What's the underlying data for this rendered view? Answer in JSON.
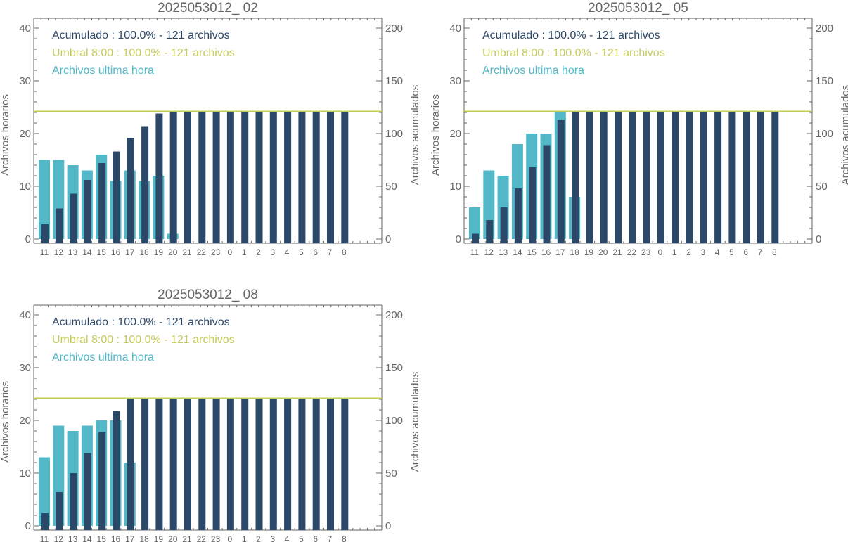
{
  "colors": {
    "hourly": "#52b8c8",
    "cumulative": "#2c4868",
    "threshold": "#c4cc5a",
    "axis": "#666666"
  },
  "chart_data": [
    {
      "type": "bar",
      "title": "2025053012_ 02",
      "categories": [
        "11",
        "12",
        "13",
        "14",
        "15",
        "16",
        "17",
        "18",
        "19",
        "20",
        "21",
        "22",
        "23",
        "0",
        "1",
        "2",
        "3",
        "4",
        "5",
        "6",
        "7",
        "8"
      ],
      "ylabel_left": "Archivos horarios",
      "ylabel_right": "Archivos acumulados",
      "ylim_left": [
        0,
        40
      ],
      "ylim_right": [
        0,
        200
      ],
      "yticks_left": [
        "0",
        "10",
        "20",
        "30",
        "40"
      ],
      "yticks_right": [
        "0",
        "50",
        "100",
        "150",
        "200"
      ],
      "threshold": 121,
      "legend": [
        {
          "text": "Acumulado : 100.0% - 121 archivos",
          "color": "#2c4868"
        },
        {
          "text": "Umbral 8:00 : 100.0% - 121 archivos",
          "color": "#c4cc5a"
        },
        {
          "text": "Archivos ultima hora",
          "color": "#52b8c8"
        }
      ],
      "series": [
        {
          "name": "Archivos ultima hora",
          "axis": "left",
          "values": [
            15,
            15,
            14,
            13,
            16,
            11,
            13,
            11,
            12,
            1,
            0,
            0,
            0,
            0,
            0,
            0,
            0,
            0,
            0,
            0,
            0,
            0
          ]
        },
        {
          "name": "Acumulado",
          "axis": "right",
          "values": [
            14,
            29,
            43,
            56,
            72,
            83,
            96,
            107,
            119,
            121,
            121,
            121,
            121,
            121,
            121,
            121,
            121,
            121,
            121,
            121,
            121,
            121
          ]
        }
      ]
    },
    {
      "type": "bar",
      "title": "2025053012_ 05",
      "categories": [
        "11",
        "12",
        "13",
        "14",
        "15",
        "16",
        "17",
        "18",
        "19",
        "20",
        "21",
        "22",
        "23",
        "0",
        "1",
        "2",
        "3",
        "4",
        "5",
        "6",
        "7",
        "8"
      ],
      "ylabel_left": "Archivos horarios",
      "ylabel_right": "Archivos acumulados",
      "ylim_left": [
        0,
        40
      ],
      "ylim_right": [
        0,
        200
      ],
      "yticks_left": [
        "0",
        "10",
        "20",
        "30",
        "40"
      ],
      "yticks_right": [
        "0",
        "50",
        "100",
        "150",
        "200"
      ],
      "threshold": 121,
      "legend": [
        {
          "text": "Acumulado : 100.0% - 121 archivos",
          "color": "#2c4868"
        },
        {
          "text": "Umbral 8:00 : 100.0% - 121 archivos",
          "color": "#c4cc5a"
        },
        {
          "text": "Archivos ultima hora",
          "color": "#52b8c8"
        }
      ],
      "series": [
        {
          "name": "Archivos ultima hora",
          "axis": "left",
          "values": [
            6,
            13,
            12,
            18,
            20,
            20,
            24,
            8,
            0,
            0,
            0,
            0,
            0,
            0,
            0,
            0,
            0,
            0,
            0,
            0,
            0,
            0
          ]
        },
        {
          "name": "Acumulado",
          "axis": "right",
          "values": [
            5,
            18,
            30,
            48,
            68,
            89,
            113,
            121,
            121,
            121,
            121,
            121,
            121,
            121,
            121,
            121,
            121,
            121,
            121,
            121,
            121,
            121
          ]
        }
      ]
    },
    {
      "type": "bar",
      "title": "2025053012_ 08",
      "categories": [
        "11",
        "12",
        "13",
        "14",
        "15",
        "16",
        "17",
        "18",
        "19",
        "20",
        "21",
        "22",
        "23",
        "0",
        "1",
        "2",
        "3",
        "4",
        "5",
        "6",
        "7",
        "8"
      ],
      "ylabel_left": "Archivos horarios",
      "ylabel_right": "Archivos acumulados",
      "ylim_left": [
        0,
        40
      ],
      "ylim_right": [
        0,
        200
      ],
      "yticks_left": [
        "0",
        "10",
        "20",
        "30",
        "40"
      ],
      "yticks_right": [
        "0",
        "50",
        "100",
        "150",
        "200"
      ],
      "threshold": 121,
      "legend": [
        {
          "text": "Acumulado : 100.0% - 121 archivos",
          "color": "#2c4868"
        },
        {
          "text": "Umbral 8:00 : 100.0% - 121 archivos",
          "color": "#c4cc5a"
        },
        {
          "text": "Archivos ultima hora",
          "color": "#52b8c8"
        }
      ],
      "series": [
        {
          "name": "Archivos ultima hora",
          "axis": "left",
          "values": [
            13,
            19,
            18,
            19,
            20,
            20,
            12,
            0,
            0,
            0,
            0,
            0,
            0,
            0,
            0,
            0,
            0,
            0,
            0,
            0,
            0,
            0
          ]
        },
        {
          "name": "Acumulado",
          "axis": "right",
          "values": [
            12,
            32,
            50,
            69,
            89,
            109,
            121,
            121,
            121,
            121,
            121,
            121,
            121,
            121,
            121,
            121,
            121,
            121,
            121,
            121,
            121,
            121
          ]
        }
      ]
    }
  ]
}
